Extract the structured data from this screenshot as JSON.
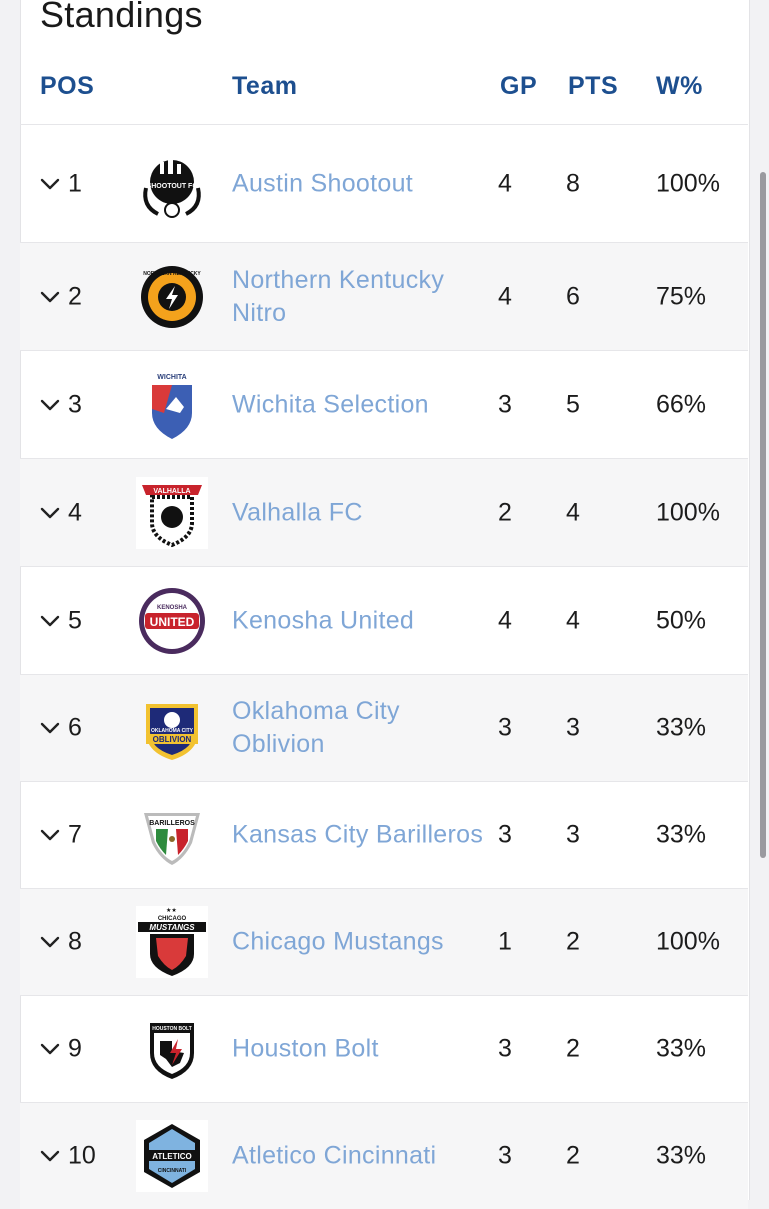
{
  "page": {
    "title": "Standings"
  },
  "columns": {
    "pos": "POS",
    "team": "Team",
    "gp": "GP",
    "pts": "PTS",
    "wpct": "W%"
  },
  "colors": {
    "header_text": "#1d4f8f",
    "team_link": "#7fa6d6",
    "row_alt": "#f6f6f7"
  },
  "rows": [
    {
      "pos": "1",
      "team": "Austin Shootout",
      "gp": "4",
      "pts": "8",
      "wpct": "100%",
      "logo": "austin-shootout-logo-icon"
    },
    {
      "pos": "2",
      "team": "Northern Kentucky Nitro",
      "gp": "4",
      "pts": "6",
      "wpct": "75%",
      "logo": "northern-kentucky-nitro-logo-icon"
    },
    {
      "pos": "3",
      "team": "Wichita Selection",
      "gp": "3",
      "pts": "5",
      "wpct": "66%",
      "logo": "wichita-selection-logo-icon"
    },
    {
      "pos": "4",
      "team": "Valhalla FC",
      "gp": "2",
      "pts": "4",
      "wpct": "100%",
      "logo": "valhalla-fc-logo-icon"
    },
    {
      "pos": "5",
      "team": "Kenosha United",
      "gp": "4",
      "pts": "4",
      "wpct": "50%",
      "logo": "kenosha-united-logo-icon"
    },
    {
      "pos": "6",
      "team": "Oklahoma City Oblivion",
      "gp": "3",
      "pts": "3",
      "wpct": "33%",
      "logo": "oklahoma-city-oblivion-logo-icon"
    },
    {
      "pos": "7",
      "team": "Kansas City Barilleros",
      "gp": "3",
      "pts": "3",
      "wpct": "33%",
      "logo": "kansas-city-barilleros-logo-icon"
    },
    {
      "pos": "8",
      "team": "Chicago Mustangs",
      "gp": "1",
      "pts": "2",
      "wpct": "100%",
      "logo": "chicago-mustangs-logo-icon"
    },
    {
      "pos": "9",
      "team": "Houston Bolt",
      "gp": "3",
      "pts": "2",
      "wpct": "33%",
      "logo": "houston-bolt-logo-icon"
    },
    {
      "pos": "10",
      "team": "Atletico Cincinnati",
      "gp": "3",
      "pts": "2",
      "wpct": "33%",
      "logo": "atletico-cincinnati-logo-icon"
    }
  ],
  "logo_text": {
    "austin": "SHOOTOUT FC",
    "nky": "NORTHERN KENTUCKY",
    "wichita": "WICHITA",
    "valhalla": "VALHALLA",
    "kenosha_top": "KENOSHA",
    "kenosha_mid": "UNITED",
    "okc_top": "OKLAHOMA CITY",
    "okc_mid": "OBLIVION",
    "barilleros": "BARILLEROS",
    "chicago_top": "CHICAGO",
    "chicago_mid": "MUSTANGS",
    "houston": "HOUSTON BOLT",
    "atletico": "ATLETICO",
    "atletico_sub": "CINCINNATI"
  }
}
